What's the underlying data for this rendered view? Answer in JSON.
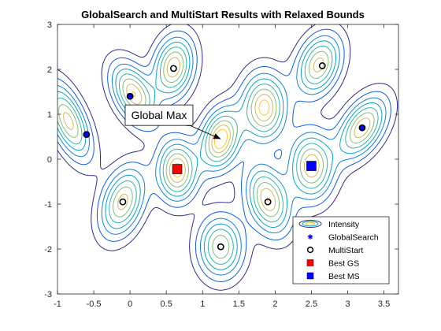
{
  "chart_data": {
    "type": "contour",
    "title": "GlobalSearch and MultiStart Results with Relaxed Bounds",
    "xlabel": "",
    "ylabel": "",
    "xlim": [
      -1,
      3.7
    ],
    "ylim": [
      -3,
      3
    ],
    "x_ticks": [
      -1,
      -0.5,
      0,
      0.5,
      1,
      1.5,
      2,
      2.5,
      3,
      3.5
    ],
    "y_ticks": [
      -3,
      -2,
      -1,
      0,
      1,
      2,
      3
    ],
    "x_tick_labels": [
      "-1",
      "-0.5",
      "0",
      "0.5",
      "1",
      "1.5",
      "2",
      "2.5",
      "3",
      "3.5"
    ],
    "y_tick_labels": [
      "-3",
      "-2",
      "-1",
      "0",
      "1",
      "2",
      "3"
    ],
    "grid": false,
    "contour_peaks": [
      {
        "x": -0.85,
        "y": 0.85,
        "sx": 0.2,
        "sy": 0.55,
        "rho": -0.6,
        "amp": 0.85
      },
      {
        "x": 0.05,
        "y": 1.45,
        "sx": 0.2,
        "sy": 0.45,
        "rho": -0.45,
        "amp": 0.9
      },
      {
        "x": 0.6,
        "y": 2.05,
        "sx": 0.18,
        "sy": 0.45,
        "rho": 0.2,
        "amp": 0.9
      },
      {
        "x": 1.25,
        "y": 0.45,
        "sx": 0.18,
        "sy": 0.45,
        "rho": 0.25,
        "amp": 1.0
      },
      {
        "x": 1.85,
        "y": 1.15,
        "sx": 0.2,
        "sy": 0.5,
        "rho": 0.0,
        "amp": 0.95
      },
      {
        "x": 2.6,
        "y": 2.1,
        "sx": 0.2,
        "sy": 0.45,
        "rho": 0.3,
        "amp": 0.85
      },
      {
        "x": 3.2,
        "y": 0.7,
        "sx": 0.22,
        "sy": 0.45,
        "rho": 0.5,
        "amp": 0.9
      },
      {
        "x": 0.65,
        "y": -0.25,
        "sx": 0.18,
        "sy": 0.45,
        "rho": 0.0,
        "amp": 0.95
      },
      {
        "x": -0.1,
        "y": -0.95,
        "sx": 0.2,
        "sy": 0.5,
        "rho": 0.35,
        "amp": 0.85
      },
      {
        "x": 1.9,
        "y": -0.9,
        "sx": 0.2,
        "sy": 0.5,
        "rho": -0.3,
        "amp": 0.9
      },
      {
        "x": 2.5,
        "y": -0.15,
        "sx": 0.2,
        "sy": 0.5,
        "rho": 0.0,
        "amp": 0.9
      },
      {
        "x": 1.25,
        "y": -1.95,
        "sx": 0.2,
        "sy": 0.45,
        "rho": 0.0,
        "amp": 0.8
      }
    ],
    "contour_levels": [
      0.08,
      0.18,
      0.3,
      0.42,
      0.55,
      0.68,
      0.8,
      0.9
    ],
    "contour_colors": [
      "#352a87",
      "#0f5cdd",
      "#1481d6",
      "#06a4ca",
      "#2eb7a4",
      "#87bf77",
      "#d1bb59",
      "#fec832"
    ],
    "series": [
      {
        "name": "GlobalSearch",
        "marker": "asterisk",
        "color": "#0000ff",
        "points": [
          [
            -0.6,
            0.55
          ],
          [
            0.0,
            1.4
          ],
          [
            3.2,
            0.7
          ]
        ]
      },
      {
        "name": "MultiStart",
        "marker": "open-circle",
        "color": "#000000",
        "points": [
          [
            -0.6,
            0.55
          ],
          [
            0.0,
            1.4
          ],
          [
            3.2,
            0.7
          ],
          [
            0.6,
            2.02
          ],
          [
            2.65,
            2.08
          ],
          [
            -0.1,
            -0.95
          ],
          [
            1.9,
            -0.95
          ],
          [
            1.25,
            -1.95
          ]
        ]
      },
      {
        "name": "Best GS",
        "marker": "filled-square",
        "color": "#ff0000",
        "points": [
          [
            0.65,
            -0.22
          ]
        ]
      },
      {
        "name": "Best MS",
        "marker": "filled-square",
        "color": "#0000ff",
        "points": [
          [
            2.5,
            -0.15
          ]
        ]
      }
    ],
    "legend": {
      "position": "bottom-right",
      "entries": [
        "Intensity",
        "GlobalSearch",
        "MultiStart",
        "Best GS",
        "Best MS"
      ]
    },
    "annotation": {
      "text": "Global Max",
      "arrow_to": [
        1.25,
        0.45
      ],
      "text_anchor_at": [
        0.4,
        0.98
      ]
    }
  }
}
